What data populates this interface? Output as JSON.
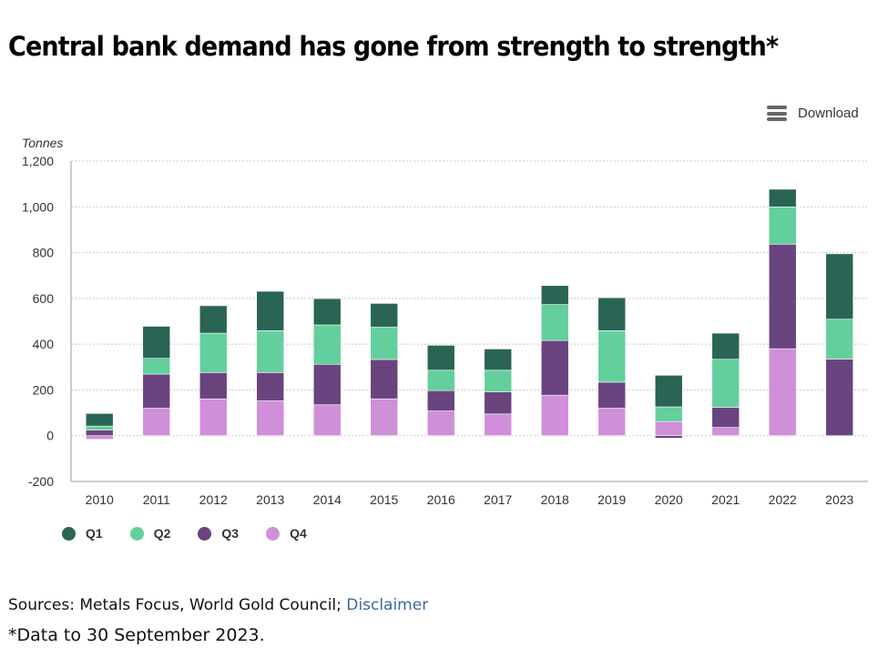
{
  "header": {
    "title": "Central bank demand has gone from strength to strength*",
    "download_label": "Download",
    "download_icon": "hamburger-menu-icon"
  },
  "colors": {
    "Q1": "#2a6455",
    "Q2": "#63cf9c",
    "Q3": "#69447f",
    "Q4": "#cf8fd9"
  },
  "footer": {
    "sources_prefix": "Sources: Metals Focus, World Gold Council; ",
    "disclaimer_link": "Disclaimer",
    "footnote": "*Data to 30 September 2023."
  },
  "chart_data": {
    "type": "bar",
    "stacked": true,
    "title": "Central bank demand has gone from strength to strength*",
    "xlabel": "",
    "ylabel": "Tonnes",
    "ylim": [
      -200,
      1200
    ],
    "yticks": [
      -200,
      0,
      200,
      400,
      600,
      800,
      1000,
      1200
    ],
    "ytick_labels": [
      "-200",
      "0",
      "200",
      "400",
      "600",
      "800",
      "1,000",
      "1,200"
    ],
    "grid": true,
    "legend_position": "bottom-left",
    "stack_order_bottom_to_top": [
      "Q4",
      "Q3",
      "Q2",
      "Q1"
    ],
    "categories": [
      "2010",
      "2011",
      "2012",
      "2013",
      "2014",
      "2015",
      "2016",
      "2017",
      "2018",
      "2019",
      "2020",
      "2021",
      "2022",
      "2023"
    ],
    "series": [
      {
        "name": "Q1",
        "values": [
          55,
          140,
          120,
          172,
          115,
          104,
          109,
          93,
          83,
          144,
          138,
          114,
          77,
          286
        ]
      },
      {
        "name": "Q2",
        "values": [
          17,
          69,
          172,
          183,
          172,
          141,
          89,
          95,
          157,
          225,
          64,
          210,
          163,
          174
        ]
      },
      {
        "name": "Q3",
        "values": [
          25,
          149,
          115,
          124,
          177,
          172,
          89,
          96,
          239,
          114,
          -11,
          88,
          457,
          335
        ]
      },
      {
        "name": "Q4",
        "values": [
          -16,
          120,
          161,
          152,
          135,
          161,
          108,
          95,
          177,
          120,
          62,
          36,
          380,
          0
        ]
      }
    ]
  }
}
